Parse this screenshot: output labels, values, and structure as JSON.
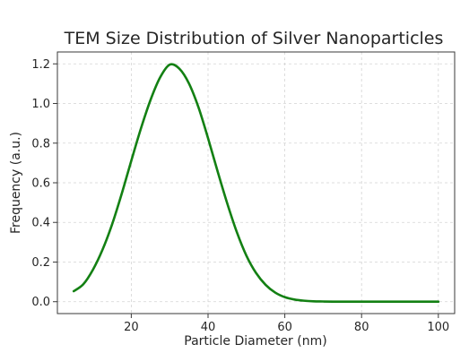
{
  "chart_data": {
    "type": "line",
    "title": "TEM Size Distribution of Silver Nanoparticles",
    "xlabel": "Particle Diameter (nm)",
    "ylabel": "Frequency (a.u.)",
    "xlim": [
      0.75,
      104.25
    ],
    "ylim": [
      -0.06,
      1.26
    ],
    "xticks": [
      20,
      40,
      60,
      80,
      100
    ],
    "yticks": [
      0.0,
      0.2,
      0.4,
      0.6,
      0.8,
      1.0,
      1.2
    ],
    "xtick_labels": [
      "20",
      "40",
      "60",
      "80",
      "100"
    ],
    "ytick_labels": [
      "0.0",
      "0.2",
      "0.4",
      "0.6",
      "0.8",
      "1.0",
      "1.2"
    ],
    "grid": true,
    "legend": "none",
    "series": [
      {
        "color": "#138013",
        "x": [
          5,
          7.5,
          10,
          12.5,
          15,
          17.5,
          20,
          22.5,
          25,
          27.5,
          30,
          32.5,
          35,
          37.5,
          40,
          42.5,
          45,
          47.5,
          50,
          52.5,
          55,
          57.5,
          60,
          62.5,
          65,
          67.5,
          70,
          72.5,
          75,
          77.5,
          80,
          82.5,
          85,
          87.5,
          90,
          92.5,
          95,
          97.5,
          100
        ],
        "y": [
          0.053,
          0.088,
          0.161,
          0.262,
          0.39,
          0.544,
          0.711,
          0.873,
          1.017,
          1.131,
          1.196,
          1.176,
          1.102,
          0.981,
          0.825,
          0.657,
          0.496,
          0.351,
          0.232,
          0.145,
          0.085,
          0.046,
          0.023,
          0.011,
          0.005,
          0.002,
          0.001,
          0.0,
          0.0,
          0.0,
          0.0,
          0.0,
          0.0,
          0.0,
          0.0,
          0.0,
          0.0,
          0.0,
          0.0
        ]
      }
    ]
  }
}
